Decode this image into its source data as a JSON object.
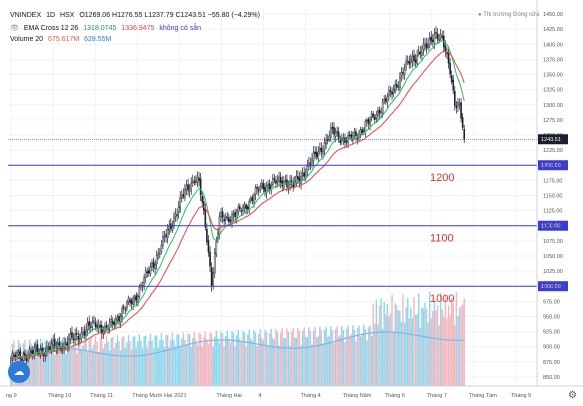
{
  "header": {
    "symbol": "VNINDEX",
    "interval": "1D",
    "exchange": "HSX",
    "ohlc": "O1269.06 H1276.55 L1237.79 C1243.51 −55.80 (−4.29%)",
    "ema_label": "EMA Cross 12 26",
    "ema_v1": "1318.0745",
    "ema_v2": "1336.9475",
    "ema_na": "không có sẵn",
    "volume_label": "Volume 20",
    "volume_v1": "675.617M",
    "volume_v2": "628.55M",
    "market_status": "● Thị trường Đóng cửa"
  },
  "colors": {
    "up": "#26a69a",
    "down": "#ef5350",
    "ema_fast": "#22c55e",
    "ema_slow": "#ef4444",
    "level_line": "#3b3bd6",
    "vol_up": "#7fd4ec",
    "vol_down": "#f3aeb8",
    "vol_ma": "#7ab8e8",
    "annotation": "#e03030"
  },
  "chart_data": {
    "type": "candlestick",
    "x_tick_labels": [
      "ng 9",
      "Tháng 10",
      "Tháng 11",
      "Tháng Mười Hai",
      "2021",
      "Tháng Hai",
      "4",
      "Tháng 4",
      "Tháng Năm",
      "Tháng 6",
      "Tháng 7",
      "Tháng Tám",
      "Tháng 9"
    ],
    "y_tick_values": [
      850,
      875,
      900,
      925,
      950,
      975,
      1000,
      1025,
      1050,
      1075,
      1100,
      1125,
      1150,
      1175,
      1200,
      1225,
      1250,
      1275,
      1300,
      1325,
      1350,
      1375,
      1400,
      1425,
      1450
    ],
    "ylim": [
      835,
      1460
    ],
    "last_price_label": "1243.51",
    "levels": [
      {
        "value": 1200,
        "axis_label": "1200.00",
        "annotation": "1200"
      },
      {
        "value": 1100,
        "axis_label": "1100.00",
        "annotation": "1100"
      },
      {
        "value": 1000,
        "axis_label": "1000.00",
        "annotation": "1000"
      }
    ],
    "trend_anchors": [
      [
        0,
        880
      ],
      [
        35,
        905
      ],
      [
        55,
        940
      ],
      [
        60,
        925
      ],
      [
        80,
        985
      ],
      [
        95,
        1060
      ],
      [
        110,
        1150
      ],
      [
        117,
        1180
      ],
      [
        120,
        1170
      ],
      [
        125,
        1080
      ],
      [
        128,
        1010
      ],
      [
        133,
        1110
      ],
      [
        145,
        1120
      ],
      [
        160,
        1165
      ],
      [
        175,
        1175
      ],
      [
        180,
        1165
      ],
      [
        190,
        1200
      ],
      [
        205,
        1255
      ],
      [
        215,
        1240
      ],
      [
        228,
        1270
      ],
      [
        240,
        1310
      ],
      [
        255,
        1375
      ],
      [
        265,
        1395
      ],
      [
        270,
        1420
      ],
      [
        275,
        1405
      ],
      [
        280,
        1360
      ],
      [
        283,
        1305
      ],
      [
        286,
        1295
      ],
      [
        289,
        1243
      ]
    ]
  }
}
